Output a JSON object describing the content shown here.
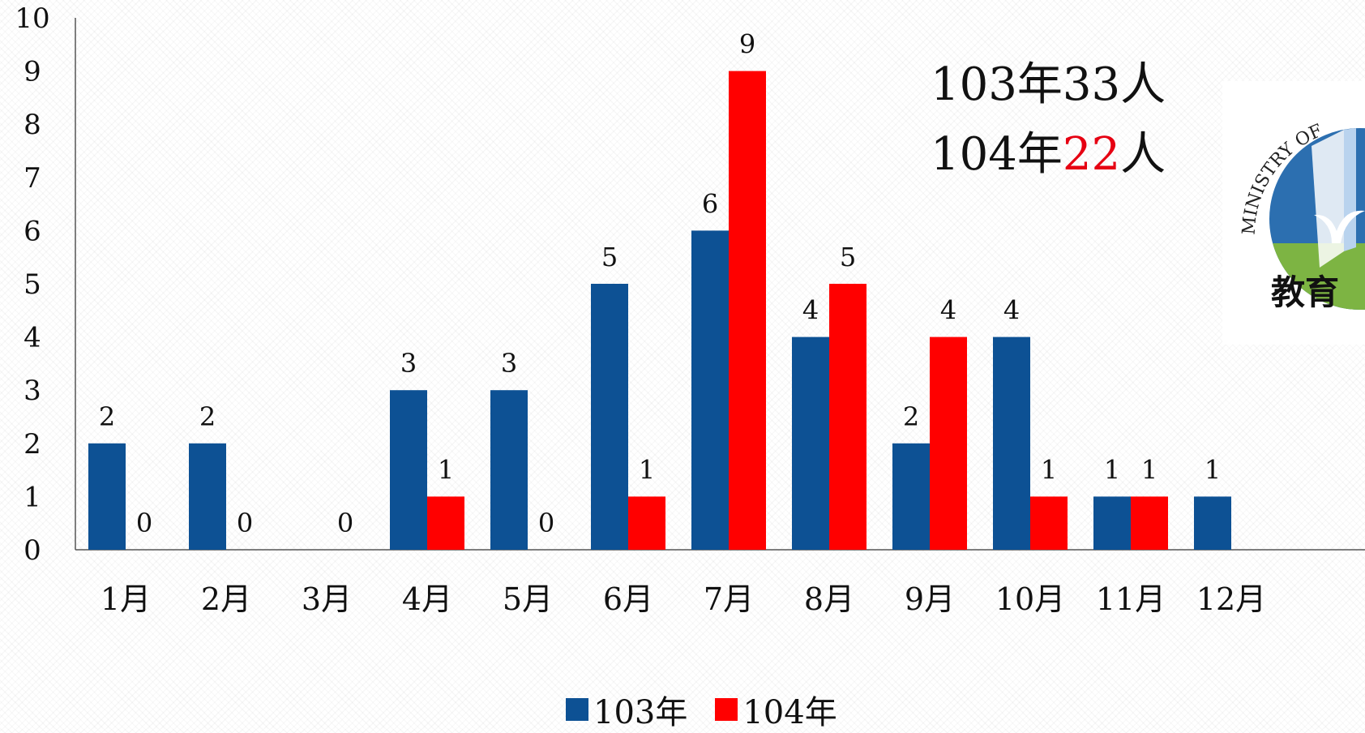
{
  "chart_data": {
    "type": "bar",
    "categories": [
      "1月",
      "2月",
      "3月",
      "4月",
      "5月",
      "6月",
      "7月",
      "8月",
      "9月",
      "10月",
      "11月",
      "12月"
    ],
    "series": [
      {
        "name": "103年",
        "color": "#0d5194",
        "values": [
          2,
          2,
          0,
          3,
          3,
          5,
          6,
          4,
          2,
          4,
          1,
          1
        ]
      },
      {
        "name": "104年",
        "color": "#ff0000",
        "values": [
          0,
          0,
          0,
          1,
          0,
          1,
          9,
          5,
          4,
          1,
          1,
          null
        ]
      }
    ],
    "data_labels": {
      "103年": [
        "2",
        "2",
        "",
        "3",
        "3",
        "5",
        "6",
        "4",
        "2",
        "4",
        "1",
        "1"
      ],
      "104年": [
        "0",
        "0",
        "0",
        "1",
        "0",
        "1",
        "9",
        "5",
        "4",
        "1",
        "1",
        ""
      ]
    },
    "yticks": [
      "0",
      "1",
      "2",
      "3",
      "4",
      "5",
      "6",
      "7",
      "8",
      "9",
      "10"
    ],
    "ylim": [
      0,
      10
    ],
    "grid": false,
    "legend_position": "bottom"
  },
  "annotation": {
    "line1": "103年33人",
    "line2_prefix": "104年",
    "line2_highlight": "22",
    "line2_suffix": "人",
    "highlight_color": "#e60012"
  },
  "logo": {
    "text": "MINISTRY OF",
    "chars": "教育",
    "ring_color": "#2c6fb0",
    "leaf_color": "#7db443"
  }
}
